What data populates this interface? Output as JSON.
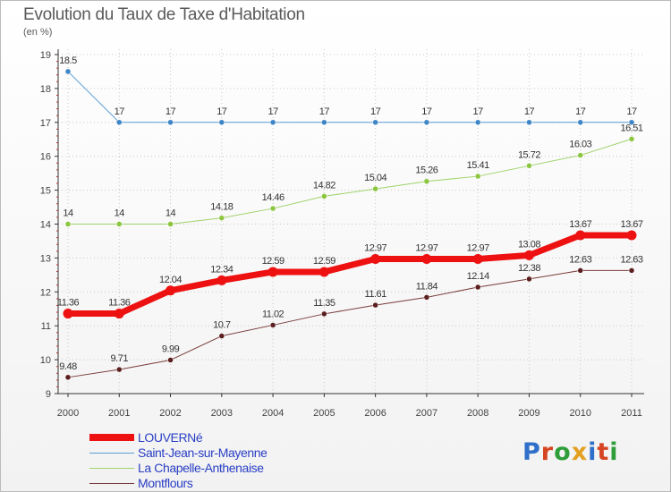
{
  "header": {
    "title": "Evolution du Taux de Taxe d'Habitation",
    "subtitle": "(en %)"
  },
  "logo": {
    "letters": [
      "P",
      "r",
      "o",
      "x",
      "i",
      "t",
      "i"
    ],
    "colors": [
      "#2f6ec9",
      "#d64422",
      "#2f9e3a",
      "#e3a020",
      "#2f6ec9",
      "#d64422",
      "#2f9e3a"
    ]
  },
  "chart_data": {
    "type": "line",
    "x": [
      "2000",
      "2001",
      "2002",
      "2003",
      "2004",
      "2005",
      "2006",
      "2007",
      "2008",
      "2009",
      "2010",
      "2011"
    ],
    "ylim": [
      9,
      19
    ],
    "yticks": [
      "9",
      "10",
      "11",
      "12",
      "13",
      "14",
      "15",
      "16",
      "17",
      "18",
      "19"
    ],
    "grid": true,
    "legend_position": "bottom-left",
    "series": [
      {
        "name": "Saint-Jean-sur-Mayenne",
        "color": "#5b9bd5",
        "marker": "#3d85c6",
        "width": 1,
        "values": [
          18.5,
          17,
          17,
          17,
          17,
          17,
          17,
          17,
          17,
          17,
          17,
          17
        ],
        "labels": [
          "18.5",
          "17",
          "17",
          "17",
          "17",
          "17",
          "17",
          "17",
          "17",
          "17",
          "17",
          "17"
        ]
      },
      {
        "name": "La Chapelle-Anthenaise",
        "color": "#9ed36a",
        "marker": "#8cc63f",
        "width": 1,
        "values": [
          14,
          14,
          14,
          14.18,
          14.46,
          14.82,
          15.04,
          15.26,
          15.41,
          15.72,
          16.03,
          16.51
        ],
        "labels": [
          "14",
          "14",
          "14",
          "14.18",
          "14.46",
          "14.82",
          "15.04",
          "15.26",
          "15.41",
          "15.72",
          "16.03",
          "16.51"
        ]
      },
      {
        "name": "Montflours",
        "color": "#7a3b3b",
        "marker": "#5c1f1f",
        "width": 1,
        "values": [
          9.48,
          9.71,
          9.99,
          10.7,
          11.02,
          11.35,
          11.61,
          11.84,
          12.14,
          12.38,
          12.63,
          12.63
        ],
        "labels": [
          "9.48",
          "9.71",
          "9.99",
          "10.7",
          "11.02",
          "11.35",
          "11.61",
          "11.84",
          "12.14",
          "12.38",
          "12.63",
          "12.63"
        ]
      },
      {
        "name": "LOUVERNé",
        "color": "#ee1111",
        "marker": "#ee1111",
        "width": 7,
        "values": [
          11.36,
          11.36,
          12.04,
          12.34,
          12.59,
          12.59,
          12.97,
          12.97,
          12.97,
          13.08,
          13.67,
          13.67
        ],
        "labels": [
          "11.36",
          "11.36",
          "12.04",
          "12.34",
          "12.59",
          "12.59",
          "12.97",
          "12.97",
          "12.97",
          "13.08",
          "13.67",
          "13.67"
        ]
      }
    ],
    "legend_order": [
      "LOUVERNé",
      "Saint-Jean-sur-Mayenne",
      "La Chapelle-Anthenaise",
      "Montflours"
    ]
  }
}
